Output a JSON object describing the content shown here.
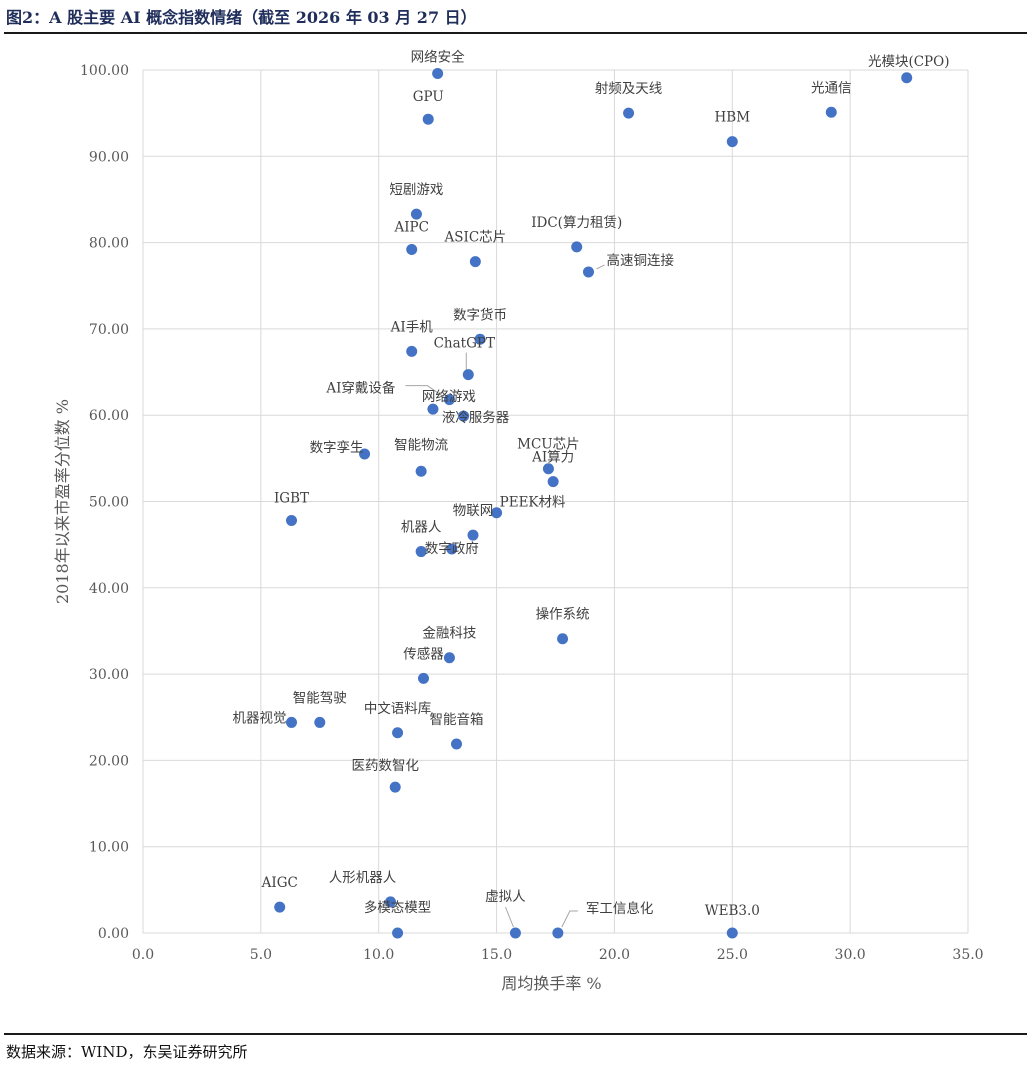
{
  "title": "图2：A 股主要 AI 概念指数情绪（截至 2026 年 03 月 27 日）",
  "source": "数据来源：WIND，东吴证券研究所",
  "chart_data": {
    "type": "scatter",
    "xlabel": "周均换手率 %",
    "ylabel": "2018年以来市盈率分位数 %",
    "xlim": [
      0,
      35
    ],
    "ylim": [
      0,
      100
    ],
    "x_ticks": [
      "0.0",
      "5.0",
      "10.0",
      "15.0",
      "20.0",
      "25.0",
      "30.0",
      "35.0"
    ],
    "y_ticks": [
      "0.00",
      "10.00",
      "20.00",
      "30.00",
      "40.00",
      "50.00",
      "60.00",
      "70.00",
      "80.00",
      "90.00",
      "100.00"
    ],
    "grid": true,
    "marker_color": "#4472c4",
    "points": [
      {
        "label": "网络安全",
        "x": 12.5,
        "y": 99.6
      },
      {
        "label": "光模块(CPO)",
        "x": 32.4,
        "y": 99.1
      },
      {
        "label": "GPU",
        "x": 12.1,
        "y": 94.3
      },
      {
        "label": "射频及天线",
        "x": 20.6,
        "y": 95.0
      },
      {
        "label": "光通信",
        "x": 29.2,
        "y": 95.1
      },
      {
        "label": "HBM",
        "x": 25.0,
        "y": 91.7
      },
      {
        "label": "短剧游戏",
        "x": 11.6,
        "y": 83.3
      },
      {
        "label": "AIPC",
        "x": 11.4,
        "y": 79.2
      },
      {
        "label": "ASIC芯片",
        "x": 14.1,
        "y": 77.8
      },
      {
        "label": "IDC(算力租赁)",
        "x": 18.4,
        "y": 79.5
      },
      {
        "label": "高速铜连接",
        "x": 18.9,
        "y": 76.6
      },
      {
        "label": "数字货币",
        "x": 14.3,
        "y": 68.8
      },
      {
        "label": "AI手机",
        "x": 11.4,
        "y": 67.4
      },
      {
        "label": "ChatGPT",
        "x": 13.8,
        "y": 64.7
      },
      {
        "label": "AI穿戴设备",
        "x": 13.0,
        "y": 61.8
      },
      {
        "label": "网络游戏",
        "x": 12.3,
        "y": 60.7
      },
      {
        "label": "液冷服务器",
        "x": 13.6,
        "y": 59.9
      },
      {
        "label": "数字孪生",
        "x": 9.4,
        "y": 55.5
      },
      {
        "label": "智能物流",
        "x": 11.8,
        "y": 53.5
      },
      {
        "label": "MCU芯片",
        "x": 17.2,
        "y": 53.8
      },
      {
        "label": "AI算力",
        "x": 17.4,
        "y": 52.3
      },
      {
        "label": "IGBT",
        "x": 6.3,
        "y": 47.8
      },
      {
        "label": "PEEK材料",
        "x": 15.0,
        "y": 48.7
      },
      {
        "label": "物联网",
        "x": 14.0,
        "y": 46.1
      },
      {
        "label": "机器人",
        "x": 11.8,
        "y": 44.2
      },
      {
        "label": "数字政府",
        "x": 13.1,
        "y": 44.5
      },
      {
        "label": "操作系统",
        "x": 17.8,
        "y": 34.1
      },
      {
        "label": "金融科技",
        "x": 13.0,
        "y": 31.9
      },
      {
        "label": "传感器",
        "x": 11.9,
        "y": 29.5
      },
      {
        "label": "智能驾驶",
        "x": 7.5,
        "y": 24.4
      },
      {
        "label": "机器视觉",
        "x": 6.3,
        "y": 24.4
      },
      {
        "label": "中文语料库",
        "x": 10.8,
        "y": 23.2
      },
      {
        "label": "智能音箱",
        "x": 13.3,
        "y": 21.9
      },
      {
        "label": "医药数智化",
        "x": 10.7,
        "y": 16.9
      },
      {
        "label": "AIGC",
        "x": 5.8,
        "y": 3.0
      },
      {
        "label": "人形机器人",
        "x": 10.5,
        "y": 3.6
      },
      {
        "label": "多模态模型",
        "x": 10.8,
        "y": 0.0
      },
      {
        "label": "虚拟人",
        "x": 15.8,
        "y": 0.0
      },
      {
        "label": "军工信息化",
        "x": 17.6,
        "y": 0.0
      },
      {
        "label": "WEB3.0",
        "x": 25.0,
        "y": 0.0
      }
    ]
  }
}
